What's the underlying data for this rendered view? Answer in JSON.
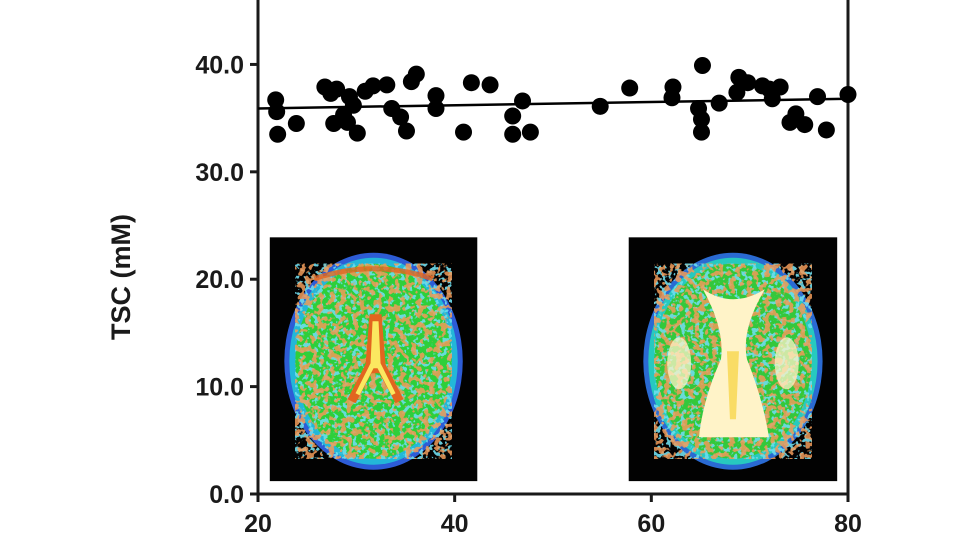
{
  "chart_data": {
    "type": "scatter",
    "title": "",
    "xlabel": "",
    "ylabel": "TSC (mM)",
    "xlim": [
      20,
      80
    ],
    "ylim": [
      0,
      46
    ],
    "x_ticks": [
      {
        "value": 20,
        "label": "20"
      },
      {
        "value": 40,
        "label": "40"
      },
      {
        "value": 60,
        "label": "60"
      },
      {
        "value": 80,
        "label": "80"
      }
    ],
    "y_ticks": [
      {
        "value": 0,
        "label": "0.0"
      },
      {
        "value": 10,
        "label": "10.0"
      },
      {
        "value": 20,
        "label": "20.0"
      },
      {
        "value": 30,
        "label": "30.0"
      },
      {
        "value": 40,
        "label": "40.0"
      }
    ],
    "grid": false,
    "marker_color": "#000000",
    "points": [
      [
        21.8,
        36.7
      ],
      [
        21.9,
        35.6
      ],
      [
        22.0,
        33.5
      ],
      [
        23.9,
        34.5
      ],
      [
        26.8,
        37.9
      ],
      [
        27.4,
        37.3
      ],
      [
        27.7,
        34.5
      ],
      [
        28.0,
        37.7
      ],
      [
        28.7,
        35.3
      ],
      [
        29.1,
        34.6
      ],
      [
        29.3,
        37.0
      ],
      [
        29.7,
        36.2
      ],
      [
        30.1,
        33.6
      ],
      [
        30.9,
        37.5
      ],
      [
        31.7,
        38.0
      ],
      [
        33.1,
        38.1
      ],
      [
        33.6,
        35.9
      ],
      [
        34.5,
        35.1
      ],
      [
        35.1,
        33.8
      ],
      [
        35.6,
        38.4
      ],
      [
        36.1,
        39.1
      ],
      [
        38.1,
        35.9
      ],
      [
        38.1,
        37.1
      ],
      [
        40.9,
        33.7
      ],
      [
        41.7,
        38.3
      ],
      [
        43.6,
        38.1
      ],
      [
        45.9,
        35.2
      ],
      [
        45.9,
        33.5
      ],
      [
        46.9,
        36.6
      ],
      [
        47.7,
        33.7
      ],
      [
        54.8,
        36.1
      ],
      [
        57.8,
        37.8
      ],
      [
        62.1,
        36.9
      ],
      [
        62.2,
        37.9
      ],
      [
        64.8,
        35.9
      ],
      [
        65.1,
        33.7
      ],
      [
        65.2,
        39.9
      ],
      [
        65.1,
        34.9
      ],
      [
        66.9,
        36.4
      ],
      [
        68.7,
        37.4
      ],
      [
        68.9,
        38.8
      ],
      [
        69.8,
        38.3
      ],
      [
        71.3,
        38.0
      ],
      [
        72.0,
        37.7
      ],
      [
        72.3,
        36.8
      ],
      [
        73.1,
        37.9
      ],
      [
        74.1,
        34.6
      ],
      [
        74.7,
        35.4
      ],
      [
        75.6,
        34.4
      ],
      [
        76.9,
        37.0
      ],
      [
        77.8,
        33.9
      ],
      [
        80.0,
        37.2
      ]
    ],
    "trendline": {
      "x": [
        20,
        80
      ],
      "y": [
        35.9,
        36.8
      ],
      "color": "#000000"
    },
    "inset_images": [
      {
        "name": "brain-scan-left",
        "x_range": [
          21.2,
          42.3
        ],
        "y_range": [
          1.2,
          23.9
        ],
        "colors": {
          "background": "#020202",
          "tissue": "#2ecf3a",
          "edge": "#23b7d8",
          "rim": "#2d5cd6",
          "highlight": "#e2651f",
          "hot": "#fbe860"
        }
      },
      {
        "name": "brain-scan-right",
        "x_range": [
          57.7,
          78.9
        ],
        "y_range": [
          1.2,
          23.9
        ],
        "colors": {
          "background": "#020202",
          "tissue": "#34c83b",
          "edge": "#27c9bf",
          "rim": "#2a6ad2",
          "highlight": "#e35a24",
          "hot": "#fff3c8"
        }
      }
    ]
  }
}
